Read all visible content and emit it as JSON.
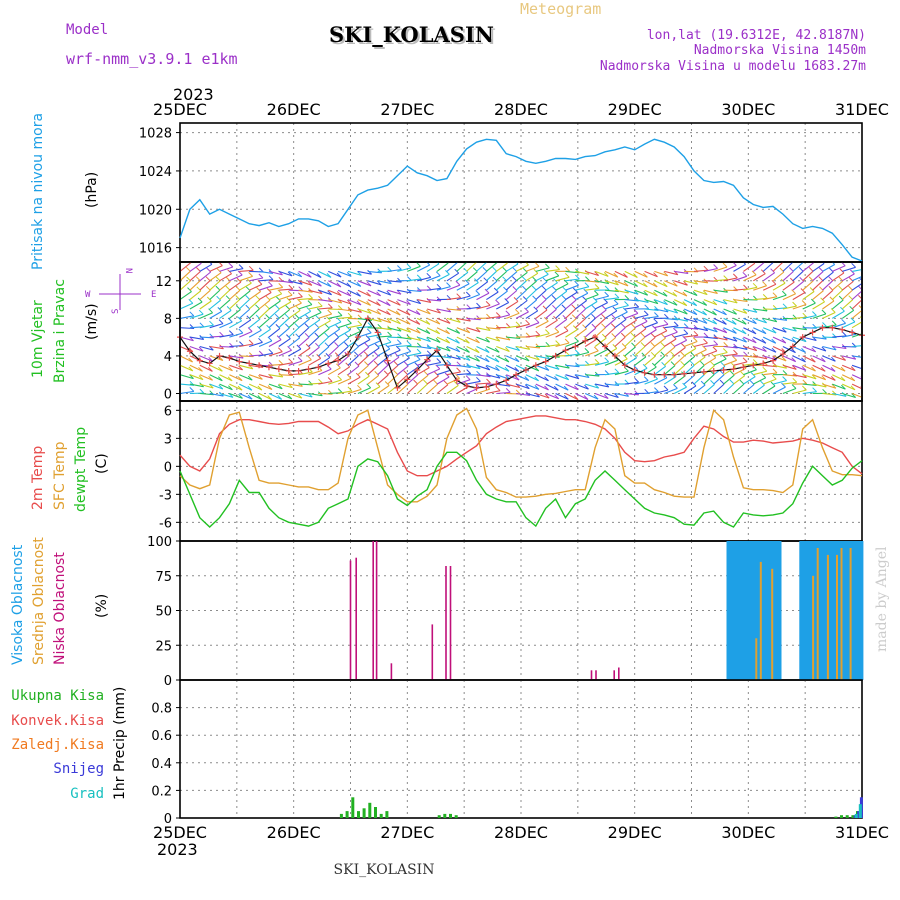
{
  "header": {
    "model_label": "Model",
    "model_name": "wrf-nmm_v3.9.1 e1km",
    "station": "SKI_KOLASIN",
    "product": "Meteogram",
    "lonlat": "lon,lat (19.6312E, 42.8187N)",
    "elevation": "Nadmorska Visina 1450m",
    "model_elevation": "Nadmorska Visina u modelu 1683.27m",
    "year_top": "2023",
    "year_bottom": "2023",
    "footer_station": "SKI_KOLASIN",
    "credit": "made by Angel"
  },
  "colors": {
    "pressure": "#1ea0e6",
    "temp2m": "#e84c4c",
    "sfc": "#e0a030",
    "dewpt": "#22c022",
    "high_cloud": "#1ea0e6",
    "mid_cloud": "#e0a030",
    "low_cloud": "#c0107a",
    "total_precip": "#22b022",
    "conv": "#e84c4c",
    "frozen": "#f07a20",
    "snow": "#3a3ad8",
    "hail": "#18c0c0",
    "model_label": "#9b30c8",
    "product_label": "#e8c880"
  },
  "time_axis": {
    "days": [
      "25DEC",
      "26DEC",
      "27DEC",
      "28DEC",
      "29DEC",
      "30DEC",
      "31DEC"
    ]
  },
  "chart_data": [
    {
      "type": "line",
      "id": "pressure",
      "ylabel_side": "Pritisak na nivou mora",
      "ylabel": "(hPa)",
      "ylim": [
        1014.5,
        1029
      ],
      "yticks": [
        1016,
        1020,
        1024,
        1028
      ],
      "series": [
        {
          "values": [
            1017,
            1020,
            1021,
            1019.5,
            1020,
            1019.5,
            1019,
            1018.5,
            1018.3,
            1018.6,
            1018.2,
            1018.5,
            1019,
            1019,
            1018.8,
            1018.2,
            1018.5,
            1020,
            1021.5,
            1022,
            1022.2,
            1022.5,
            1023.5,
            1024.5,
            1023.8,
            1023.5,
            1023,
            1023.2,
            1025,
            1026.3,
            1027,
            1027.3,
            1027.2,
            1025.8,
            1025.5,
            1025,
            1024.8,
            1025,
            1025.3,
            1025.3,
            1025.2,
            1025.5,
            1025.6,
            1026,
            1026.2,
            1026.5,
            1026.2,
            1026.8,
            1027.3,
            1027,
            1026.5,
            1025.5,
            1024,
            1023,
            1022.8,
            1022.9,
            1022.5,
            1021.2,
            1020.5,
            1020.2,
            1020.3,
            1019.5,
            1018.5,
            1018,
            1018.2,
            1018,
            1017.5,
            1016.3,
            1015,
            1014.6
          ]
        }
      ]
    },
    {
      "type": "line",
      "id": "wind",
      "ylabel_side": "10m Vjetar Brzina i Pravac",
      "ylabel": "(m/s)",
      "compass": [
        "N",
        "W",
        "E",
        "S"
      ],
      "ylim": [
        -0.8,
        14
      ],
      "yticks": [
        0,
        4,
        8,
        12
      ],
      "series": [
        {
          "values": [
            6,
            4.5,
            3.5,
            3.2,
            4,
            3.8,
            3.4,
            3.2,
            3,
            2.8,
            2.6,
            2.4,
            2.4,
            2.6,
            2.8,
            3.2,
            3.5,
            4.2,
            6,
            8,
            6.5,
            3.5,
            0.6,
            1.5,
            2.5,
            3.6,
            4.6,
            3,
            1.4,
            0.8,
            0.6,
            0.7,
            1,
            1.4,
            2,
            2.5,
            3,
            3.4,
            4,
            4.6,
            5,
            5.6,
            6,
            5,
            4,
            3,
            2.5,
            2.2,
            2,
            2,
            2,
            2.1,
            2.2,
            2.3,
            2.4,
            2.5,
            2.6,
            2.8,
            3,
            3.2,
            3.5,
            4.2,
            5,
            6,
            6.5,
            7,
            7,
            6.8,
            6.5,
            6.2
          ]
        }
      ]
    },
    {
      "type": "line",
      "id": "temperature",
      "ylabel_side": [
        "2m Temp",
        "SFC Temp",
        "dewpt Temp"
      ],
      "ylabel": "(C)",
      "ylim": [
        -8,
        7
      ],
      "yticks": [
        -6,
        -3,
        0,
        3,
        6
      ],
      "series": [
        {
          "name": "2m Temp",
          "values": [
            1.2,
            0,
            -0.5,
            0.8,
            3.5,
            4.5,
            5,
            5,
            4.8,
            4.6,
            4.5,
            4.6,
            4.8,
            4.8,
            4.8,
            4.2,
            3.5,
            3.8,
            4.5,
            5,
            4.5,
            4,
            1.5,
            -0.5,
            -1,
            -1,
            -0.5,
            0,
            0.8,
            1.5,
            2.2,
            3.5,
            4.2,
            4.8,
            5,
            5.2,
            5.4,
            5.4,
            5.2,
            5,
            5,
            4.8,
            4.5,
            4,
            3,
            1.5,
            0.6,
            0.5,
            0.6,
            1,
            1.2,
            1.5,
            3,
            4.3,
            4,
            3.2,
            2.6,
            2.6,
            2.8,
            2.7,
            2.5,
            2.6,
            2.7,
            3,
            2.8,
            2.5,
            2,
            1.5,
            0,
            -0.8
          ]
        },
        {
          "name": "SFC Temp",
          "values": [
            -1,
            -2,
            -2.4,
            -2,
            3,
            5.5,
            5.8,
            2,
            -1.5,
            -1.8,
            -1.8,
            -2,
            -2.2,
            -2.2,
            -2.5,
            -2.5,
            -1.8,
            3,
            5.5,
            6,
            2,
            -2,
            -3,
            -3.8,
            -3.8,
            -3.2,
            -2,
            3,
            5.5,
            6.2,
            4,
            -1.2,
            -2.5,
            -2.8,
            -3.3,
            -3.3,
            -3.2,
            -3,
            -2.9,
            -2.7,
            -2.5,
            -2.5,
            2,
            5,
            4,
            -1,
            -1.8,
            -1.8,
            -2.5,
            -2.8,
            -3.2,
            -3.3,
            -3.3,
            2,
            6,
            5,
            1,
            -2.3,
            -2.5,
            -2.5,
            -2.6,
            -2.8,
            -2,
            4,
            5,
            2,
            -0.5,
            -0.9,
            -0.9,
            -1
          ]
        },
        {
          "name": "dewpt Temp",
          "values": [
            -0.5,
            -3,
            -5.5,
            -6.5,
            -5.5,
            -4,
            -1.5,
            -2.8,
            -2.8,
            -4.5,
            -5.5,
            -6,
            -6.2,
            -6.4,
            -6,
            -4.5,
            -4,
            -3.5,
            0,
            0.8,
            0.5,
            -1,
            -3.5,
            -4.2,
            -3.2,
            -2.5,
            0,
            1.5,
            1.5,
            0.6,
            -1.5,
            -3,
            -3.5,
            -3.8,
            -3.8,
            -5.5,
            -6.4,
            -4.5,
            -3.5,
            -5.5,
            -4,
            -3.5,
            -1.5,
            -0.5,
            -1.5,
            -2.5,
            -3.5,
            -4.5,
            -5,
            -5.2,
            -5.5,
            -6.2,
            -6.3,
            -5,
            -4.8,
            -6,
            -6.5,
            -5,
            -5.2,
            -5.3,
            -5.2,
            -5,
            -4,
            -1.8,
            0,
            -1,
            -2,
            -1.5,
            -0.2,
            0.6
          ]
        }
      ]
    },
    {
      "type": "bar",
      "id": "clouds",
      "ylabel_side": [
        "Visoka Oblacnost",
        "Srednja Oblacnost",
        "Niska Oblacnost"
      ],
      "ylabel": "(%)",
      "ylim": [
        0,
        100
      ],
      "yticks": [
        0,
        25,
        50,
        75,
        100
      ],
      "series": [
        {
          "name": "Niska Oblacnost",
          "points": [
            [
              1.5,
              86
            ],
            [
              1.55,
              88
            ],
            [
              1.7,
              100
            ],
            [
              1.73,
              100
            ],
            [
              1.86,
              12
            ],
            [
              2.22,
              40
            ],
            [
              2.34,
              82
            ],
            [
              2.38,
              82
            ],
            [
              3.62,
              7
            ],
            [
              3.66,
              7
            ],
            [
              3.82,
              7
            ],
            [
              3.86,
              9
            ]
          ]
        },
        {
          "name": "Visoka Oblacnost",
          "points": [
            [
              4.83,
              100
            ],
            [
              4.87,
              100
            ],
            [
              4.91,
              100
            ],
            [
              4.95,
              100
            ],
            [
              4.99,
              100
            ],
            [
              5.03,
              100
            ],
            [
              5.07,
              100
            ],
            [
              5.11,
              100
            ],
            [
              5.15,
              100
            ],
            [
              5.19,
              100
            ],
            [
              5.23,
              100
            ],
            [
              5.27,
              100
            ],
            [
              5.47,
              100
            ],
            [
              5.51,
              100
            ],
            [
              5.55,
              100
            ],
            [
              5.59,
              100
            ],
            [
              5.63,
              100
            ],
            [
              5.67,
              100
            ],
            [
              5.71,
              100
            ],
            [
              5.75,
              100
            ],
            [
              5.79,
              100
            ],
            [
              5.83,
              100
            ],
            [
              5.87,
              100
            ],
            [
              5.91,
              100
            ],
            [
              5.95,
              100
            ],
            [
              5.99,
              100
            ]
          ]
        },
        {
          "name": "Srednja Oblacnost",
          "points": [
            [
              5.07,
              30
            ],
            [
              5.11,
              85
            ],
            [
              5.21,
              80
            ],
            [
              5.57,
              75
            ],
            [
              5.61,
              95
            ],
            [
              5.7,
              90
            ],
            [
              5.78,
              90
            ],
            [
              5.82,
              95
            ],
            [
              5.9,
              95
            ]
          ]
        }
      ]
    },
    {
      "type": "bar",
      "id": "precip",
      "ylabel": "1hr Precip (mm)",
      "legend": [
        "Ukupna Kisa",
        "Konvek.Kisa",
        "Zaledj.Kisa",
        "Snijeg",
        "Grad"
      ],
      "ylim": [
        0,
        1.0
      ],
      "yticks": [
        0,
        0.2,
        0.4,
        0.6,
        0.8
      ],
      "series": [
        {
          "name": "Ukupna Kisa",
          "points": [
            [
              1.42,
              0.03
            ],
            [
              1.47,
              0.05
            ],
            [
              1.52,
              0.15
            ],
            [
              1.57,
              0.05
            ],
            [
              1.62,
              0.07
            ],
            [
              1.67,
              0.11
            ],
            [
              1.72,
              0.08
            ],
            [
              1.77,
              0.03
            ],
            [
              1.82,
              0.05
            ],
            [
              2.28,
              0.02
            ],
            [
              2.33,
              0.03
            ],
            [
              2.38,
              0.03
            ],
            [
              2.43,
              0.02
            ],
            [
              5.77,
              0.01
            ],
            [
              5.82,
              0.02
            ],
            [
              5.87,
              0.02
            ],
            [
              5.92,
              0.02
            ],
            [
              5.96,
              0.05
            ],
            [
              5.99,
              0.1
            ]
          ]
        },
        {
          "name": "Snijeg",
          "points": [
            [
              5.94,
              0.02
            ],
            [
              5.97,
              0.05
            ],
            [
              5.995,
              0.15
            ]
          ]
        },
        {
          "name": "Grad",
          "points": [
            [
              5.95,
              0.03
            ],
            [
              5.985,
              0.1
            ]
          ]
        }
      ]
    }
  ]
}
